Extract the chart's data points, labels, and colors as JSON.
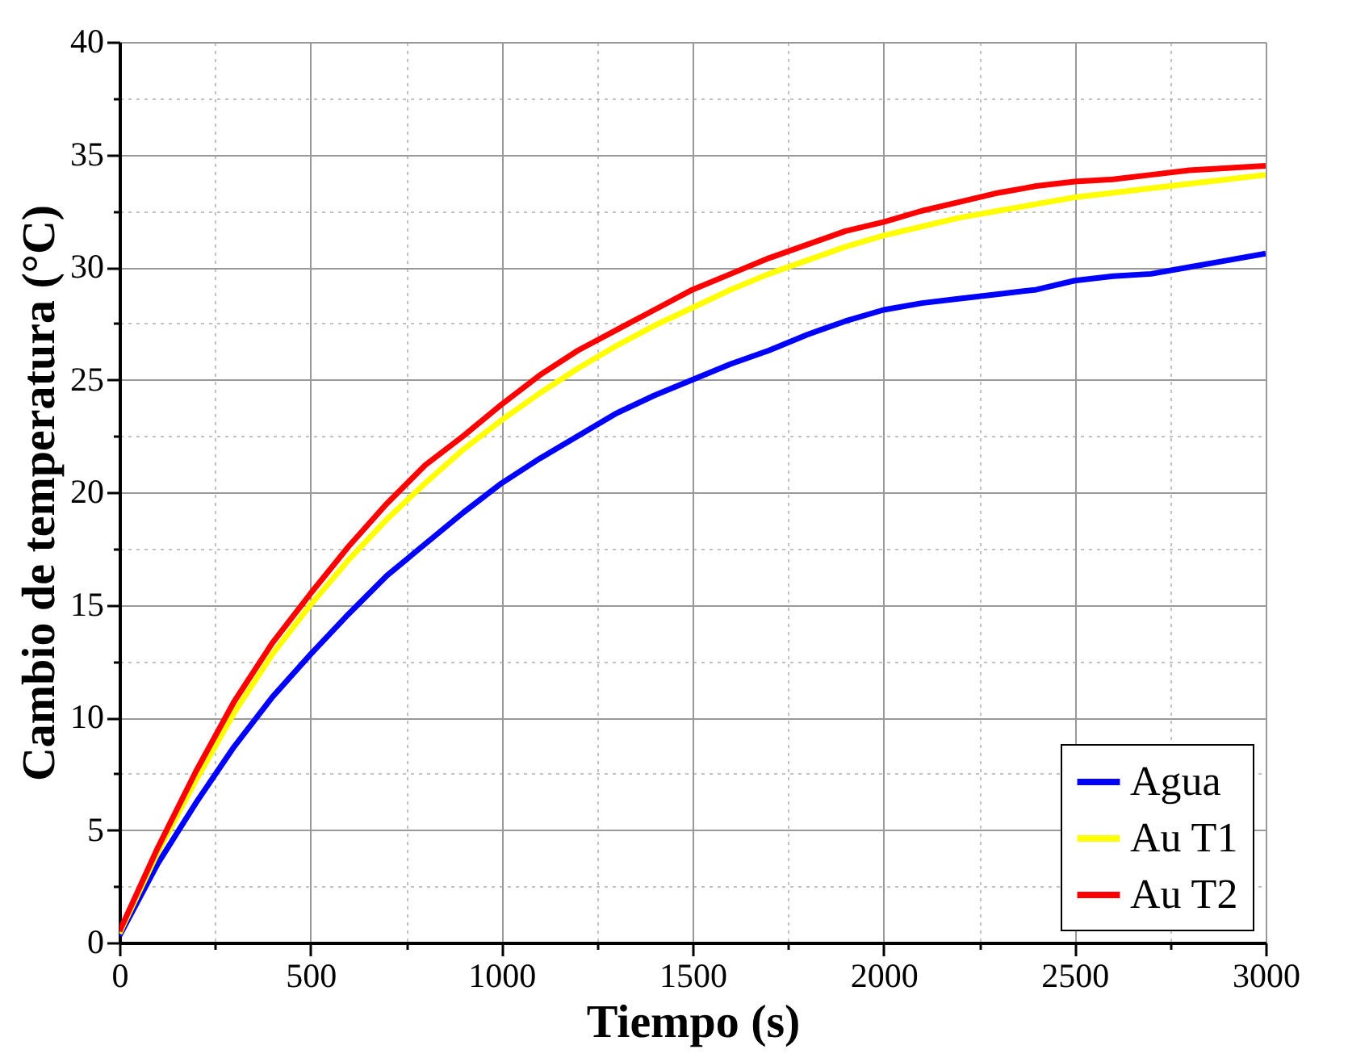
{
  "chart_data": {
    "type": "line",
    "xlabel": "Tiempo (s)",
    "ylabel": "Cambio de temperatura (°C)",
    "x": [
      0,
      100,
      200,
      300,
      400,
      500,
      600,
      700,
      800,
      900,
      1000,
      1100,
      1200,
      1300,
      1400,
      1500,
      1600,
      1700,
      1800,
      1900,
      2000,
      2100,
      2200,
      2300,
      2400,
      2500,
      2600,
      2700,
      2800,
      2900,
      3000
    ],
    "series": [
      {
        "name": "Agua",
        "color": "#0000ff",
        "values": [
          0.3,
          3.5,
          6.2,
          8.7,
          10.9,
          12.8,
          14.6,
          16.3,
          17.7,
          19.1,
          20.4,
          21.5,
          22.5,
          23.5,
          24.3,
          25.0,
          25.7,
          26.3,
          27.0,
          27.6,
          28.1,
          28.4,
          28.6,
          28.8,
          29.0,
          29.4,
          29.6,
          29.7,
          30.0,
          30.3,
          30.6
        ]
      },
      {
        "name": "Au T1",
        "color": "#ffff00",
        "values": [
          0.4,
          4.0,
          7.2,
          10.2,
          12.8,
          15.0,
          17.0,
          18.8,
          20.4,
          21.9,
          23.2,
          24.4,
          25.5,
          26.5,
          27.4,
          28.2,
          29.0,
          29.7,
          30.3,
          30.9,
          31.4,
          31.8,
          32.2,
          32.5,
          32.8,
          33.1,
          33.3,
          33.5,
          33.7,
          33.9,
          34.1
        ]
      },
      {
        "name": "Au T2",
        "color": "#ff0000",
        "values": [
          0.5,
          4.2,
          7.6,
          10.7,
          13.3,
          15.5,
          17.6,
          19.5,
          21.2,
          22.5,
          23.9,
          25.2,
          26.3,
          27.2,
          28.1,
          29.0,
          29.7,
          30.4,
          31.0,
          31.6,
          32.0,
          32.5,
          32.9,
          33.3,
          33.6,
          33.8,
          33.9,
          34.1,
          34.3,
          34.4,
          34.5
        ]
      }
    ],
    "xlim": [
      0,
      3000
    ],
    "xticks": [
      0,
      {
        "value": 250,
        "label": null
      },
      500,
      {
        "value": 750,
        "label": null
      },
      1000,
      {
        "value": 1250,
        "label": null
      },
      1500,
      {
        "value": 1750,
        "label": null
      },
      2000,
      {
        "value": 2250,
        "label": null
      },
      2500,
      {
        "value": 2750,
        "label": null
      },
      3000
    ],
    "ylim": [
      0,
      40
    ],
    "yticks": [
      0,
      {
        "value": 2.5,
        "label": null
      },
      5,
      {
        "value": 7.5,
        "label": null
      },
      10,
      {
        "value": 12.5,
        "label": null
      },
      15,
      {
        "value": 17.5,
        "label": null
      },
      20,
      {
        "value": 22.5,
        "label": null
      },
      25,
      {
        "value": 27.5,
        "label": null
      },
      30,
      {
        "value": 32.5,
        "label": null
      },
      35,
      {
        "value": 37.5,
        "label": null
      },
      40
    ],
    "grid": true,
    "legend": "bottom right",
    "marker": "none",
    "line_style": "solid"
  }
}
